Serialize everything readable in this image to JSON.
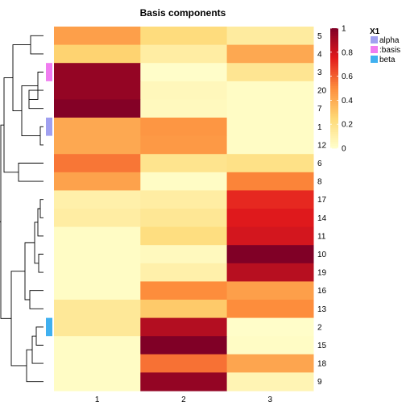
{
  "chart_data": {
    "type": "heatmap",
    "title": "Basis components",
    "columns": [
      "1",
      "2",
      "3"
    ],
    "rows": [
      "5",
      "4",
      "3",
      "20",
      "7",
      "1",
      "12",
      "6",
      "8",
      "17",
      "14",
      "11",
      "10",
      "19",
      "16",
      "13",
      "2",
      "15",
      "18",
      "9"
    ],
    "values": [
      [
        0.44,
        0.23,
        0.13
      ],
      [
        0.27,
        0.12,
        0.41
      ],
      [
        0.95,
        0.01,
        0.17
      ],
      [
        0.95,
        0.05,
        0.02
      ],
      [
        0.99,
        0.04,
        0.02
      ],
      [
        0.41,
        0.47,
        0.02
      ],
      [
        0.41,
        0.46,
        0.02
      ],
      [
        0.55,
        0.18,
        0.2
      ],
      [
        0.43,
        0.02,
        0.52
      ],
      [
        0.1,
        0.12,
        0.72
      ],
      [
        0.12,
        0.16,
        0.76
      ],
      [
        0.02,
        0.22,
        0.79
      ],
      [
        0.02,
        0.04,
        1.0
      ],
      [
        0.02,
        0.1,
        0.86
      ],
      [
        0.02,
        0.5,
        0.44
      ],
      [
        0.15,
        0.3,
        0.5
      ],
      [
        0.15,
        0.87,
        0.01
      ],
      [
        0.02,
        1.0,
        0.02
      ],
      [
        0.02,
        0.56,
        0.42
      ],
      [
        0.02,
        0.95,
        0.07
      ]
    ],
    "color_range": [
      0,
      1
    ],
    "colorbar_ticks": [
      0,
      0.2,
      0.4,
      0.6,
      0.8,
      1
    ],
    "colorbar_tick_labels": [
      "0",
      "0.2",
      "0.4",
      "0.6",
      "0.8",
      "1"
    ],
    "annotation": {
      "title": "X1",
      "rows": {
        "3": ":basis",
        "1": "alpha",
        "2": "beta"
      },
      "legend": [
        {
          "label": "alpha",
          "color": "#a0a0f0"
        },
        {
          "label": ":basis",
          "color": "#f07cf0"
        },
        {
          "label": "beta",
          "color": "#40b0f0"
        }
      ]
    },
    "legend_position": "right"
  }
}
